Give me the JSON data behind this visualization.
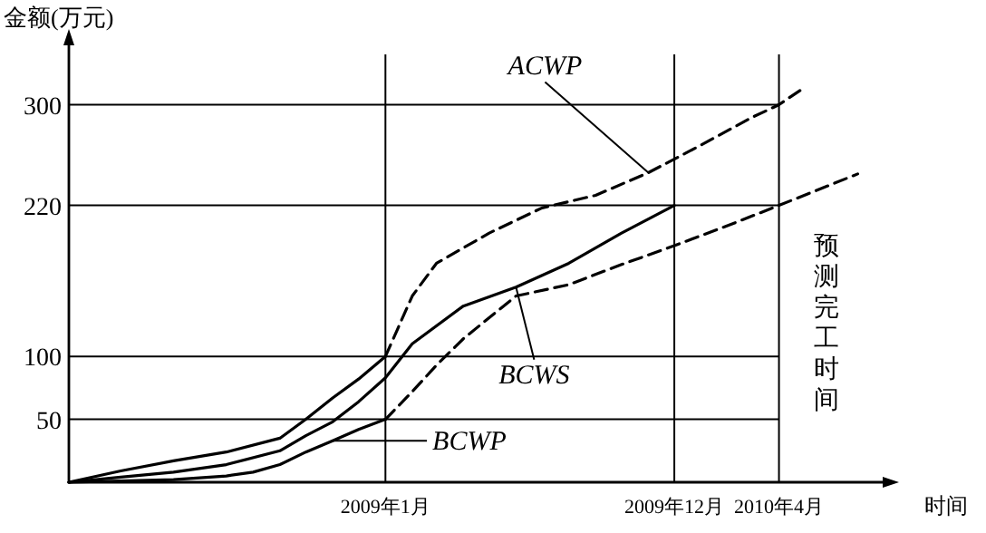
{
  "chart_data": {
    "type": "line",
    "xlabel": "时间",
    "ylabel": "金额(万元)",
    "xlim": [
      "2008-01",
      "2010-08"
    ],
    "ylim": [
      0,
      340
    ],
    "xticks": [
      {
        "value": "2009-01",
        "label": "2009年1月"
      },
      {
        "value": "2009-12",
        "label": "2009年12月"
      },
      {
        "value": "2010-04",
        "label": "2010年4月"
      }
    ],
    "yticks": [
      50,
      100,
      220,
      300
    ],
    "grid": false,
    "series": [
      {
        "color": "#000000",
        "line_style": "solid",
        "x": [
          "2008-01",
          "2008-03",
          "2008-05",
          "2008-07",
          "2008-09",
          "2008-10",
          "2008-11",
          "2008-12",
          "2009-01"
        ],
        "values": [
          0,
          9,
          17,
          24,
          35,
          50,
          67,
          82,
          100
        ]
      },
      {
        "name": "ACWP",
        "color": "#000000",
        "line_style": "dashed",
        "x": [
          "2009-01",
          "2009-02",
          "2009-03",
          "2009-05",
          "2009-07",
          "2009-09",
          "2009-11",
          "2010-01",
          "2010-03",
          "2010-04",
          "2010-05"
        ],
        "values": [
          100,
          148,
          174,
          198,
          218,
          228,
          246,
          268,
          290,
          300,
          314
        ]
      },
      {
        "name": "BCWS",
        "color": "#000000",
        "line_style": "solid",
        "x": [
          "2008-01",
          "2008-03",
          "2008-05",
          "2008-07",
          "2008-09",
          "2008-10",
          "2008-11",
          "2008-12",
          "2009-01",
          "2009-02",
          "2009-04",
          "2009-06",
          "2009-08",
          "2009-10",
          "2009-12"
        ],
        "values": [
          0,
          4,
          8,
          14,
          25,
          37,
          48,
          64,
          83,
          110,
          140,
          155,
          174,
          198,
          220
        ]
      },
      {
        "name": "BCWP",
        "color": "#000000",
        "line_style": "solid",
        "x": [
          "2008-01",
          "2008-03",
          "2008-05",
          "2008-07",
          "2008-08",
          "2008-09",
          "2008-10",
          "2008-11",
          "2008-12",
          "2009-01"
        ],
        "values": [
          0,
          1,
          2,
          5,
          8,
          14,
          24,
          33,
          42,
          50
        ]
      },
      {
        "color": "#000000",
        "line_style": "dashed",
        "x": [
          "2009-01",
          "2009-02",
          "2009-03",
          "2009-04",
          "2009-06",
          "2009-08",
          "2009-10",
          "2009-12",
          "2010-02",
          "2010-04",
          "2010-07"
        ],
        "values": [
          50,
          72,
          93,
          114,
          148,
          157,
          173,
          188,
          204,
          220,
          245
        ]
      }
    ],
    "ref_lines": [
      {
        "axis": "y",
        "value": 300
      },
      {
        "axis": "y",
        "value": 220
      },
      {
        "axis": "y",
        "value": 100
      },
      {
        "axis": "y",
        "value": 50
      },
      {
        "axis": "x",
        "value": "2009-01"
      },
      {
        "axis": "x",
        "value": "2009-12"
      },
      {
        "axis": "x",
        "value": "2010-04",
        "label": "预测完工时间"
      }
    ]
  }
}
